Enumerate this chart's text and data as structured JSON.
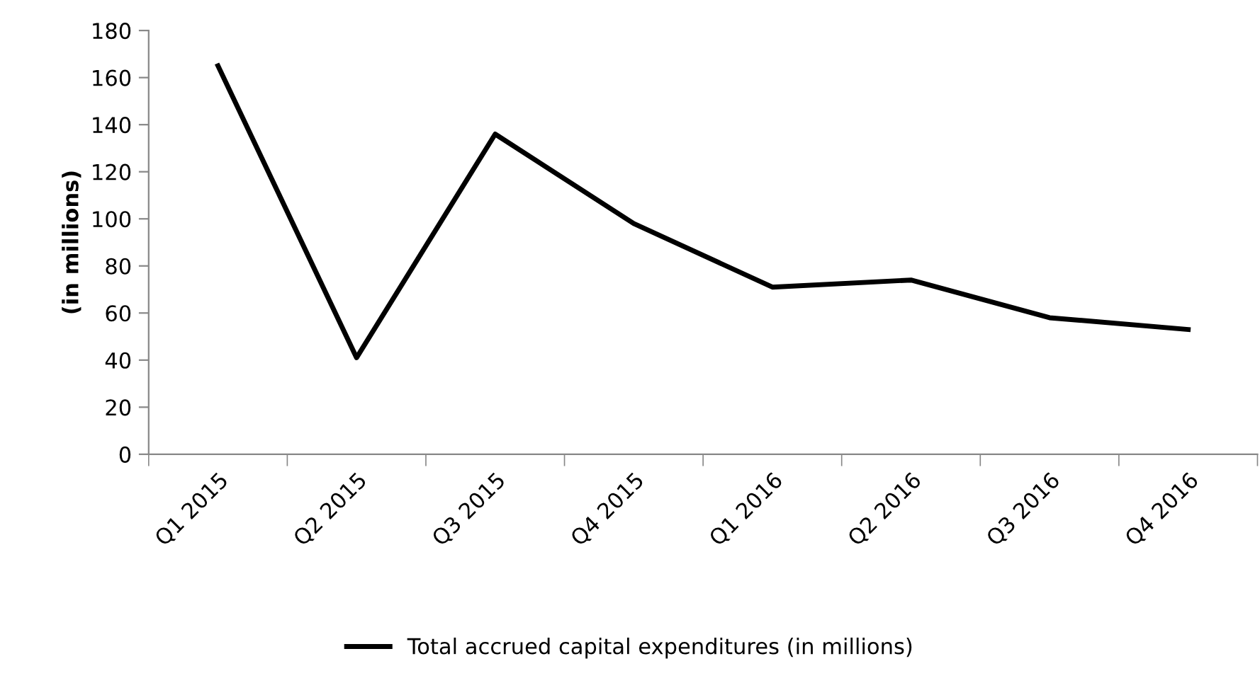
{
  "chart_data": {
    "type": "line",
    "ylabel": "(in millions)",
    "categories": [
      "Q1 2015",
      "Q2 2015",
      "Q3 2015",
      "Q4 2015",
      "Q1 2016",
      "Q2 2016",
      "Q3 2016",
      "Q4 2016"
    ],
    "series": [
      {
        "name": "Total accrued capital expenditures (in millions)",
        "color": "#000000",
        "values": [
          165,
          41,
          136,
          98,
          71,
          74,
          58,
          53
        ]
      }
    ],
    "ylim": [
      0,
      180
    ],
    "yticks": [
      0,
      20,
      40,
      60,
      80,
      100,
      120,
      140,
      160,
      180
    ],
    "grid": false,
    "legend": "bottom",
    "marker": "none",
    "line_style": "solid"
  }
}
